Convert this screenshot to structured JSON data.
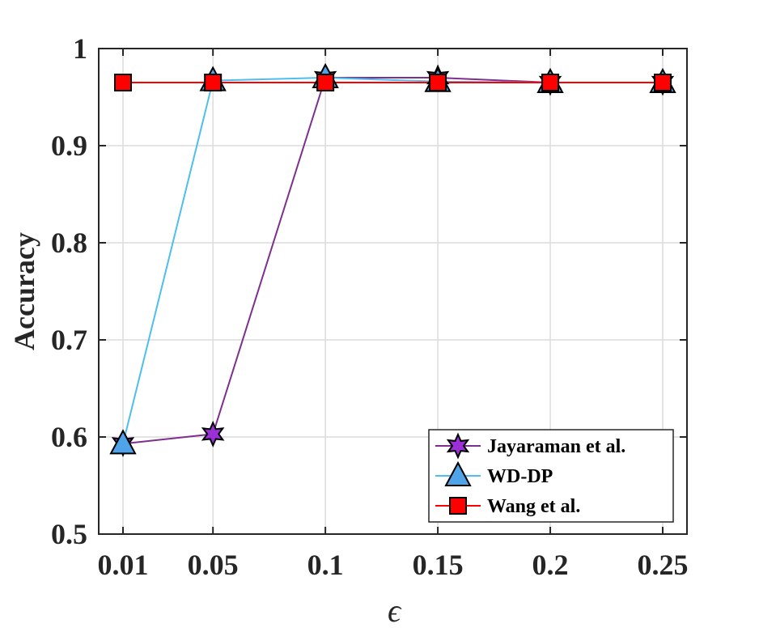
{
  "chart_data": {
    "type": "line",
    "categories": [
      "0.01",
      "0.05",
      "0.1",
      "0.15",
      "0.2",
      "0.25"
    ],
    "xlabel": "ϵ",
    "ylabel": "Accuracy",
    "ylim": [
      0.5,
      1
    ],
    "yticks": [
      "0.5",
      "0.6",
      "0.7",
      "0.8",
      "0.9",
      "1"
    ],
    "grid": true,
    "legend_position": "bottom-right",
    "series": [
      {
        "name": "Jayaraman et al.",
        "values": [
          0.593,
          0.603,
          0.97,
          0.97,
          0.965,
          0.965
        ],
        "color": "#7e2f8e",
        "marker": "hexagram",
        "marker_fill": "#9b30d9"
      },
      {
        "name": "WD-DP",
        "values": [
          0.593,
          0.967,
          0.97,
          0.966,
          0.965,
          0.965
        ],
        "color": "#4dbeee",
        "marker": "triangle",
        "marker_fill": "#4fa3e8"
      },
      {
        "name": "Wang et al.",
        "values": [
          0.965,
          0.965,
          0.965,
          0.965,
          0.965,
          0.965
        ],
        "color": "#ff0000",
        "marker": "square",
        "marker_fill": "#ff0000"
      }
    ]
  }
}
